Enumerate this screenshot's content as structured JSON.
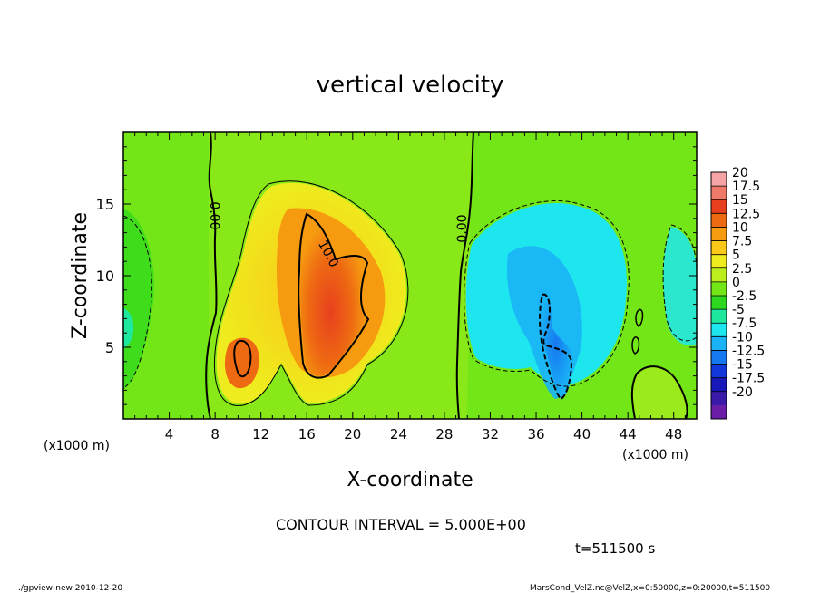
{
  "chart_data": {
    "type": "heatmap",
    "title": "vertical velocity",
    "xlabel": "X-coordinate",
    "ylabel": "Z-coordinate",
    "x_unit": "(x1000 m)",
    "xlim": [
      0,
      50
    ],
    "ylim": [
      0,
      20
    ],
    "x_ticks": [
      4,
      8,
      12,
      16,
      20,
      24,
      28,
      32,
      36,
      40,
      44,
      48
    ],
    "y_ticks": [
      5,
      10,
      15
    ],
    "x_ticklabels": [
      "4",
      "8",
      "12",
      "16",
      "20",
      "24",
      "28",
      "32",
      "36",
      "40",
      "44",
      "48"
    ],
    "y_ticklabels": [
      "5",
      "10",
      "15"
    ],
    "colorbar": {
      "levels": [
        20,
        17.5,
        15,
        12.5,
        10,
        7.5,
        5,
        2.5,
        0,
        -2.5,
        -5,
        -7.5,
        -10,
        -12.5,
        -15,
        -17.5,
        -20
      ],
      "labels": [
        "20",
        "17.5",
        "15",
        "12.5",
        "10",
        "7.5",
        "5",
        "2.5",
        "0",
        "-2.5",
        "-5",
        "-7.5",
        "-10",
        "-12.5",
        "-15",
        "-17.5",
        "-20"
      ],
      "colors": [
        "#f4a4a4",
        "#f07a6a",
        "#e8401e",
        "#ee6a12",
        "#f69a10",
        "#fac818",
        "#eeec1e",
        "#bcee1e",
        "#72e616",
        "#2ed81e",
        "#1ee89e",
        "#1ee6ee",
        "#1ab4f6",
        "#1678f0",
        "#1238dc",
        "#1818b8",
        "#3a1aa8",
        "#6a1ea8"
      ]
    },
    "contour_labels": [
      "0.00",
      "10.0",
      "0.00"
    ],
    "grid": false
  },
  "annotations": {
    "contour_interval": "CONTOUR INTERVAL = 5.000E+00",
    "time": "t=511500 s",
    "footer_left": "./gpview-new  2010-12-20",
    "footer_right": "MarsCond_VelZ.nc@VelZ,x=0:50000,z=0:20000,t=511500"
  }
}
